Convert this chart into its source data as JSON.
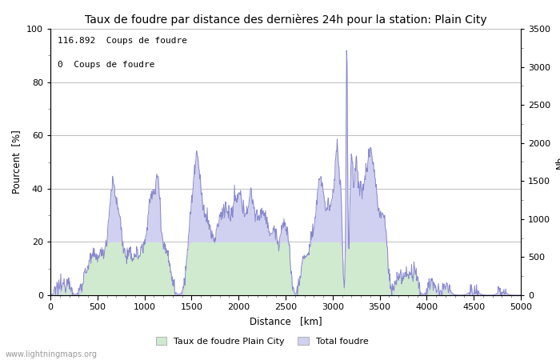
{
  "title": "Taux de foudre par distance des dernières 24h pour la station: Plain City",
  "xlabel": "Distance   [km]",
  "ylabel_left": "Pourcent  [%]",
  "ylabel_right": "Nb",
  "xlim": [
    0,
    5000
  ],
  "ylim_left": [
    0,
    100
  ],
  "ylim_right": [
    0,
    3500
  ],
  "yticks_left": [
    0,
    20,
    40,
    60,
    80,
    100
  ],
  "yticks_right": [
    0,
    500,
    1000,
    1500,
    2000,
    2500,
    3000,
    3500
  ],
  "xticks": [
    0,
    500,
    1000,
    1500,
    2000,
    2500,
    3000,
    3500,
    4000,
    4500,
    5000
  ],
  "annotation1": "116.892  Coups de foudre",
  "annotation2": "0  Coups de foudre",
  "legend1": "Taux de foudre Plain City",
  "legend2": "Total foudre",
  "color_line": "#8888cc",
  "color_fill_blue": "#d0d0f0",
  "color_fill_green": "#d0ead0",
  "watermark": "www.lightningmaps.org",
  "bg_color": "#ffffff",
  "grid_color": "#bbbbbb",
  "title_fontsize": 10,
  "label_fontsize": 8.5
}
